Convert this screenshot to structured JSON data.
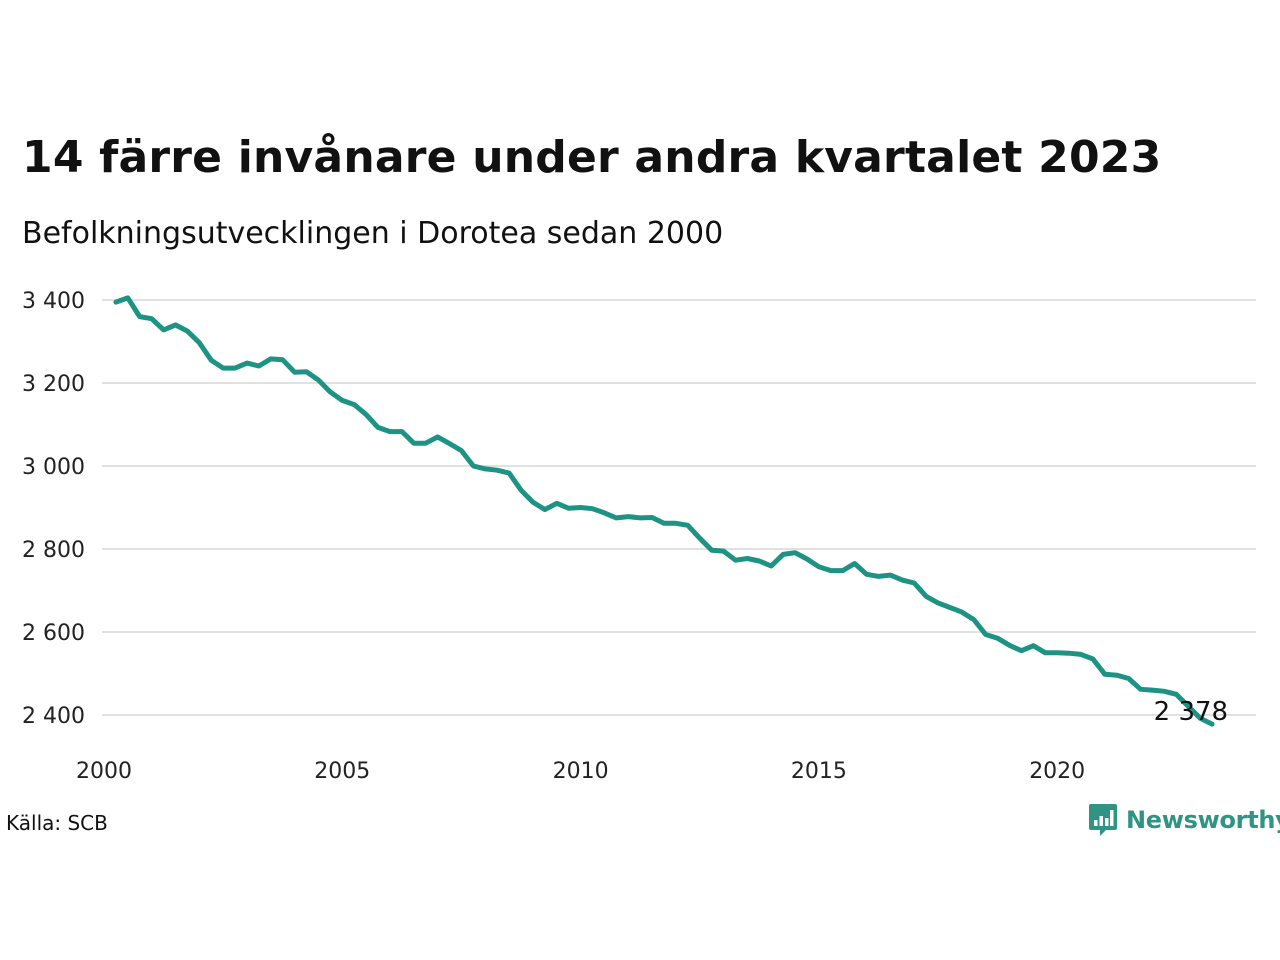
{
  "header": {
    "title": "14 färre invånare under andra kvartalet 2023",
    "subtitle": "Befolkningsutvecklingen i Dorotea sedan 2000"
  },
  "footer": {
    "source": "Källa: SCB",
    "brand": "Newsworthy",
    "brand_icon": "newsworthy-logo-icon"
  },
  "colors": {
    "line": "#1d9384",
    "grid": "#e1e1e1",
    "brand": "#2f9484"
  },
  "chart_data": {
    "type": "line",
    "title": "14 färre invånare under andra kvartalet 2023",
    "subtitle": "Befolkningsutvecklingen i Dorotea sedan 2000",
    "xlabel": "",
    "ylabel": "",
    "xlim": [
      2000,
      2023.5
    ],
    "ylim": [
      2330,
      3430
    ],
    "x_ticks": [
      2000,
      2005,
      2010,
      2015,
      2020
    ],
    "x_tick_labels": [
      "2000",
      "2005",
      "2010",
      "2015",
      "2020"
    ],
    "y_ticks": [
      2400,
      2600,
      2800,
      3000,
      3200,
      3400
    ],
    "y_tick_labels": [
      "2 400",
      "2 600",
      "2 800",
      "3 000",
      "3 200",
      "3 400"
    ],
    "grid": true,
    "end_label": "2 378",
    "series": [
      {
        "x": [
          2000.25,
          2000.5,
          2000.75,
          2001.0,
          2001.25,
          2001.5,
          2001.75,
          2002.0,
          2002.25,
          2002.5,
          2002.75,
          2003.0,
          2003.25,
          2003.5,
          2003.75,
          2004.0,
          2004.25,
          2004.5,
          2004.75,
          2005.0,
          2005.25,
          2005.5,
          2005.75,
          2006.0,
          2006.25,
          2006.5,
          2006.75,
          2007.0,
          2007.25,
          2007.5,
          2007.75,
          2008.0,
          2008.25,
          2008.5,
          2008.75,
          2009.0,
          2009.25,
          2009.5,
          2009.75,
          2010.0,
          2010.25,
          2010.5,
          2010.75,
          2011.0,
          2011.25,
          2011.5,
          2011.75,
          2012.0,
          2012.25,
          2012.5,
          2012.75,
          2013.0,
          2013.25,
          2013.5,
          2013.75,
          2014.0,
          2014.25,
          2014.5,
          2014.75,
          2015.0,
          2015.25,
          2015.5,
          2015.75,
          2016.0,
          2016.25,
          2016.5,
          2016.75,
          2017.0,
          2017.25,
          2017.5,
          2017.75,
          2018.0,
          2018.25,
          2018.5,
          2018.75,
          2019.0,
          2019.25,
          2019.5,
          2019.75,
          2020.0,
          2020.25,
          2020.5,
          2020.75,
          2021.0,
          2021.25,
          2021.5,
          2021.75,
          2022.0,
          2022.25,
          2022.5,
          2022.75,
          2023.0,
          2023.25
        ],
        "values": [
          3395,
          3405,
          3360,
          3355,
          3328,
          3340,
          3325,
          3297,
          3255,
          3236,
          3236,
          3248,
          3241,
          3258,
          3256,
          3226,
          3227,
          3207,
          3178,
          3158,
          3148,
          3124,
          3093,
          3083,
          3083,
          3055,
          3055,
          3070,
          3054,
          3037,
          3000,
          2993,
          2990,
          2983,
          2942,
          2913,
          2895,
          2910,
          2898,
          2900,
          2897,
          2887,
          2875,
          2878,
          2875,
          2876,
          2862,
          2862,
          2857,
          2826,
          2797,
          2795,
          2773,
          2777,
          2771,
          2759,
          2787,
          2791,
          2776,
          2757,
          2748,
          2748,
          2765,
          2739,
          2734,
          2737,
          2725,
          2718,
          2686,
          2670,
          2659,
          2648,
          2630,
          2594,
          2585,
          2568,
          2555,
          2567,
          2550,
          2550,
          2549,
          2546,
          2535,
          2498,
          2496,
          2488,
          2462,
          2460,
          2457,
          2450,
          2421,
          2392,
          2378
        ]
      }
    ]
  }
}
